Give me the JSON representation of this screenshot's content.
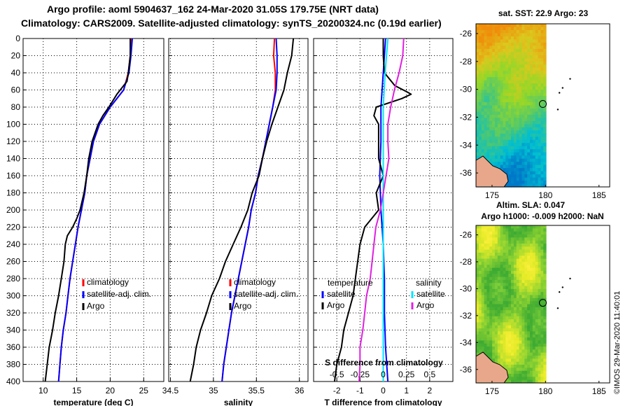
{
  "header": {
    "line1": "Argo profile: aoml 5904637_162 24-Mar-2020 31.05S 179.75E (NRT data)",
    "line2": "Climatology: CARS2009. Satellite-adjusted climatology: synTS_20200324.nc (0.19d earlier)"
  },
  "colors": {
    "argo": "#000000",
    "climatology": "#ff0000",
    "satellite": "#0000ff",
    "satellite_salinity": "#00e5ff",
    "argo_salinity_diff": "#e020e0"
  },
  "chart_data": [
    {
      "id": "temperature",
      "type": "line",
      "xlabel": "temperature (deg C)",
      "ylabel": "",
      "xlim": [
        7,
        28
      ],
      "ylim": [
        400,
        0
      ],
      "xticks": [
        "10",
        "15",
        "20",
        "25"
      ],
      "xtick_values": [
        10,
        15,
        20,
        25
      ],
      "yticks": [
        "0",
        "20",
        "40",
        "60",
        "80",
        "100",
        "120",
        "140",
        "160",
        "180",
        "200",
        "220",
        "240",
        "260",
        "280",
        "300",
        "320",
        "340",
        "360",
        "380",
        "400"
      ],
      "ytick_values": [
        0,
        20,
        40,
        60,
        80,
        100,
        120,
        140,
        160,
        180,
        200,
        220,
        240,
        260,
        280,
        300,
        320,
        340,
        360,
        380,
        400
      ],
      "legend": [
        "climatology",
        "satellite-adj. clim.",
        "Argo"
      ],
      "series": [
        {
          "name": "climatology",
          "color": "#ff0000",
          "depth": [
            0,
            20,
            40,
            60,
            80,
            100,
            120,
            140,
            160,
            180,
            200,
            220,
            240,
            260,
            280,
            300,
            320,
            340,
            360,
            380,
            400
          ],
          "values": [
            23.1,
            23.0,
            22.7,
            22.0,
            20.0,
            18.4,
            17.5,
            17.0,
            16.5,
            16.2,
            15.7,
            15.2,
            14.8,
            14.4,
            14.0,
            13.7,
            13.4,
            13.0,
            12.7,
            12.5,
            12.3
          ]
        },
        {
          "name": "satellite-adj. clim.",
          "color": "#0000ff",
          "depth": [
            0,
            20,
            40,
            60,
            80,
            100,
            120,
            140,
            160,
            180,
            200,
            220,
            240,
            260,
            280,
            300,
            320,
            340,
            360,
            380,
            400
          ],
          "values": [
            23.3,
            23.1,
            22.8,
            22.0,
            20.0,
            18.4,
            17.5,
            17.0,
            16.5,
            16.2,
            15.7,
            15.2,
            14.8,
            14.4,
            14.0,
            13.7,
            13.4,
            13.0,
            12.7,
            12.5,
            12.3
          ]
        },
        {
          "name": "Argo",
          "color": "#000000",
          "depth": [
            0,
            20,
            40,
            50,
            60,
            65,
            70,
            80,
            90,
            100,
            120,
            140,
            160,
            180,
            200,
            210,
            220,
            230,
            240,
            260,
            280,
            300,
            320,
            340,
            360,
            380,
            400
          ],
          "values": [
            23.0,
            23.0,
            22.7,
            22.5,
            21.5,
            21.0,
            20.6,
            19.8,
            18.9,
            18.2,
            17.3,
            16.8,
            16.5,
            16.1,
            15.5,
            15.0,
            14.4,
            13.6,
            13.3,
            13.1,
            12.7,
            12.3,
            11.8,
            11.4,
            10.9,
            10.6,
            10.3
          ]
        }
      ]
    },
    {
      "id": "salinity",
      "type": "line",
      "xlabel": "salinity",
      "ylabel": "",
      "xlim": [
        34.48,
        36.1
      ],
      "ylim": [
        400,
        0
      ],
      "xticks": [
        "34.5",
        "35",
        "35.5",
        "36"
      ],
      "xtick_values": [
        34.5,
        35,
        35.5,
        36
      ],
      "legend": [
        "climatology",
        "satellite-adj. clim.",
        "Argo"
      ],
      "series": [
        {
          "name": "climatology",
          "color": "#ff0000",
          "depth": [
            0,
            20,
            40,
            60,
            80,
            100,
            120,
            140,
            160,
            180,
            200,
            220,
            240,
            260,
            280,
            300,
            320,
            340,
            360,
            380,
            400
          ],
          "values": [
            35.71,
            35.7,
            35.72,
            35.72,
            35.69,
            35.65,
            35.61,
            35.57,
            35.52,
            35.49,
            35.44,
            35.41,
            35.37,
            35.33,
            35.29,
            35.25,
            35.21,
            35.18,
            35.15,
            35.12,
            35.1
          ]
        },
        {
          "name": "satellite-adj. clim.",
          "color": "#0000ff",
          "depth": [
            0,
            20,
            40,
            60,
            80,
            100,
            120,
            140,
            160,
            180,
            200,
            220,
            240,
            260,
            280,
            300,
            320,
            340,
            360,
            380,
            400
          ],
          "values": [
            35.73,
            35.74,
            35.74,
            35.73,
            35.69,
            35.65,
            35.61,
            35.57,
            35.52,
            35.49,
            35.44,
            35.41,
            35.37,
            35.33,
            35.29,
            35.25,
            35.21,
            35.18,
            35.15,
            35.12,
            35.1
          ]
        },
        {
          "name": "Argo",
          "color": "#000000",
          "depth": [
            0,
            20,
            40,
            60,
            80,
            100,
            120,
            140,
            160,
            180,
            200,
            220,
            240,
            260,
            280,
            300,
            320,
            340,
            360,
            380,
            400
          ],
          "values": [
            35.93,
            35.91,
            35.86,
            35.82,
            35.75,
            35.68,
            35.62,
            35.57,
            35.53,
            35.45,
            35.4,
            35.32,
            35.23,
            35.14,
            35.07,
            34.98,
            34.92,
            34.85,
            34.8,
            34.77,
            34.73
          ]
        }
      ]
    },
    {
      "id": "difference",
      "type": "line",
      "xlabel": "T difference from climatology",
      "ylabel": "",
      "xlim": [
        -3,
        3
      ],
      "ylim": [
        400,
        0
      ],
      "xticks": [
        "-2",
        "-1",
        "0",
        "1",
        "2"
      ],
      "xtick_values": [
        -2,
        -1,
        0,
        1,
        2
      ],
      "top_axis_label": "S difference from climatology",
      "top_xlim": [
        -0.75,
        0.75
      ],
      "top_xticks": [
        "-0.5",
        "-0.25",
        "0",
        "0.25",
        "0.5"
      ],
      "top_xtick_values": [
        -0.5,
        -0.25,
        0,
        0.25,
        0.5
      ],
      "legend_temperature_title": "temperature",
      "legend_salinity_title": "salinity",
      "legend_temperature": [
        "satellite",
        "Argo"
      ],
      "legend_salinity": [
        "satellite",
        "Argo"
      ],
      "series": [
        {
          "name": "T satellite",
          "color": "#0000ff",
          "depth": [
            0,
            40,
            80,
            120,
            160,
            200,
            240,
            280,
            320,
            360,
            400
          ],
          "values": [
            0.1,
            0.0,
            -0.1,
            -0.1,
            -0.15,
            -0.1,
            0.0,
            0.05,
            0.05,
            0.1,
            0.2
          ]
        },
        {
          "name": "T Argo",
          "color": "#000000",
          "depth": [
            0,
            20,
            40,
            55,
            62,
            65,
            70,
            80,
            90,
            100,
            120,
            140,
            160,
            180,
            200,
            220,
            240,
            260,
            280,
            300,
            320,
            340,
            360,
            380,
            400
          ],
          "values": [
            0.0,
            0.0,
            0.05,
            0.5,
            1.0,
            1.2,
            0.8,
            -0.3,
            -0.4,
            -0.2,
            -0.2,
            -0.2,
            0.0,
            -0.3,
            -0.2,
            -0.8,
            -1.0,
            -1.1,
            -1.2,
            -1.3,
            -1.5,
            -1.7,
            -1.8,
            -2.0,
            -2.1
          ]
        },
        {
          "name": "S satellite",
          "color": "#00e5ff",
          "depth": [
            0,
            40,
            80,
            120,
            160,
            200,
            240,
            280,
            320,
            360,
            400
          ],
          "values": [
            0.05,
            0.02,
            0.0,
            0.0,
            0.0,
            0.0,
            0.0,
            0.0,
            0.0,
            0.0,
            0.0
          ]
        },
        {
          "name": "S Argo",
          "color": "#e020e0",
          "depth": [
            0,
            20,
            40,
            60,
            70,
            80,
            100,
            120,
            140,
            160,
            180,
            200,
            220,
            240,
            260,
            280,
            300,
            320,
            340,
            360,
            380,
            400
          ],
          "values": [
            0.22,
            0.21,
            0.17,
            0.12,
            0.1,
            0.08,
            0.05,
            0.05,
            0.06,
            0.03,
            0.0,
            -0.03,
            -0.08,
            -0.1,
            -0.12,
            -0.14,
            -0.18,
            -0.2,
            -0.22,
            -0.25,
            -0.25,
            -0.26
          ]
        }
      ]
    },
    {
      "id": "sst-map",
      "type": "heatmap",
      "title": "sat. SST: 22.9 Argo: 23",
      "xlim": [
        173.5,
        186
      ],
      "ylim": [
        -37,
        -25.3
      ],
      "xticks": [
        "175",
        "180",
        "185"
      ],
      "xtick_values": [
        175,
        180,
        185
      ],
      "yticks": [
        "-26",
        "-28",
        "-30",
        "-32",
        "-34",
        "-36"
      ],
      "ytick_values": [
        -26,
        -28,
        -30,
        -32,
        -34,
        -36
      ],
      "marker": {
        "lon": 179.75,
        "lat": -31.05
      }
    },
    {
      "id": "sla-map",
      "type": "heatmap",
      "title": "Altim. SLA: 0.047",
      "subtitle": "Argo h1000: -0.009 h2000: NaN",
      "xlim": [
        173.5,
        186
      ],
      "ylim": [
        -37,
        -25.3
      ],
      "xticks": [
        "175",
        "180",
        "185"
      ],
      "xtick_values": [
        175,
        180,
        185
      ],
      "yticks": [
        "-26",
        "-28",
        "-30",
        "-32",
        "-34",
        "-36"
      ],
      "ytick_values": [
        -26,
        -28,
        -30,
        -32,
        -34,
        -36
      ],
      "marker": {
        "lon": 179.75,
        "lat": -31.05
      }
    }
  ],
  "footer": {
    "copyright": "©IMOS 29-Mar-2020 11:40:01"
  }
}
